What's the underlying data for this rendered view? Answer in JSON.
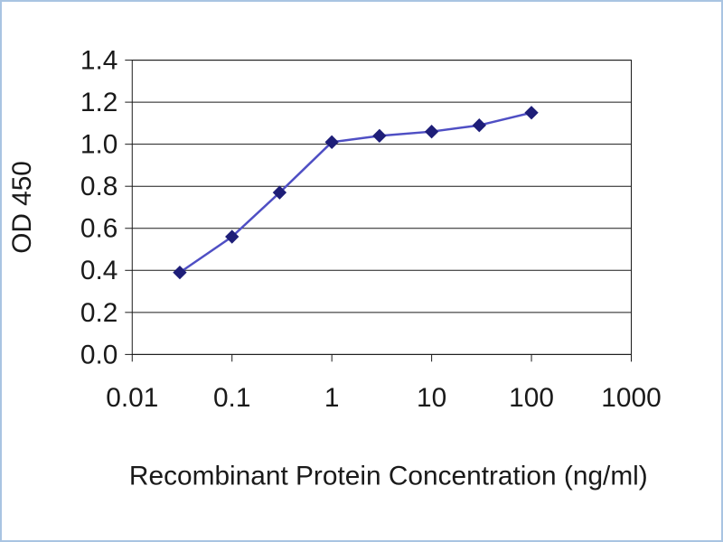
{
  "figure": {
    "xlabel": "Recombinant Protein Concentration (ng/ml)",
    "ylabel": "OD 450"
  },
  "chart_data": {
    "type": "line",
    "title": "",
    "x_scale": "log",
    "x": [
      0.03,
      0.1,
      0.3,
      1,
      3,
      10,
      30,
      100
    ],
    "y": [
      0.39,
      0.56,
      0.77,
      1.01,
      1.04,
      1.06,
      1.09,
      1.15
    ],
    "xlabel": "Recombinant Protein Concentration (ng/ml)",
    "ylabel": "OD 450",
    "xlim": [
      0.01,
      1000
    ],
    "ylim": [
      0.0,
      1.4
    ],
    "x_tick_labels": [
      "0.01",
      "0.1",
      "1",
      "10",
      "100",
      "1000"
    ],
    "y_tick_labels": [
      "0.0",
      "0.2",
      "0.4",
      "0.6",
      "0.8",
      "1.0",
      "1.2",
      "1.4"
    ],
    "grid": "horizontal",
    "legend": "none",
    "marker": "diamond",
    "line_color": "#4f4fc4",
    "marker_color": "#1e1e78",
    "axis_color": "#1a1a1a",
    "frame_border_color": "#a9c4e2"
  }
}
